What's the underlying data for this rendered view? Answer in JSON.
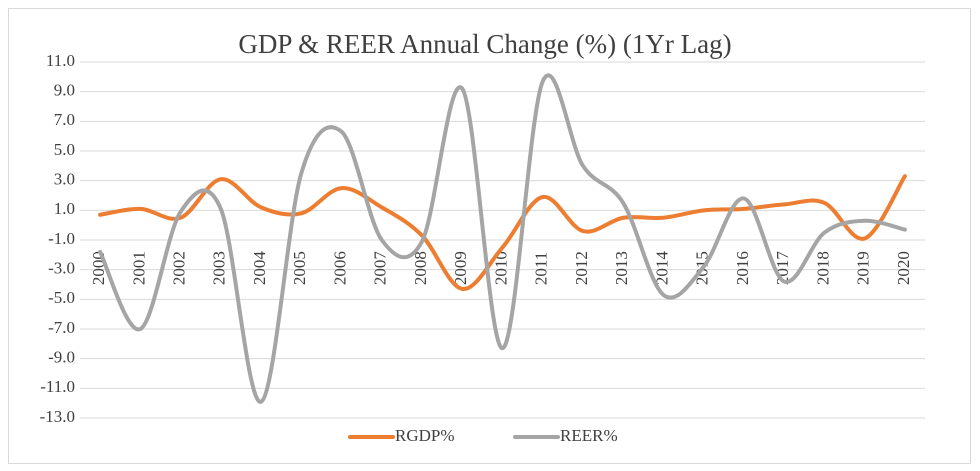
{
  "chart_data": {
    "type": "line",
    "title": "GDP & REER Annual Change (%) (1Yr Lag)",
    "categories": [
      "2000",
      "2001",
      "2002",
      "2003",
      "2004",
      "2005",
      "2006",
      "2007",
      "2008",
      "2009",
      "2010",
      "2011",
      "2012",
      "2013",
      "2014",
      "2015",
      "2016",
      "2017",
      "2018",
      "2019",
      "2020"
    ],
    "series": [
      {
        "name": "RGDP%",
        "color": "#ED7D31",
        "values": [
          0.7,
          1.1,
          0.5,
          3.1,
          1.2,
          0.8,
          2.5,
          1.2,
          -0.7,
          -4.3,
          -1.5,
          1.9,
          -0.4,
          0.5,
          0.5,
          1.0,
          1.1,
          1.4,
          1.5,
          -0.9,
          3.3
        ]
      },
      {
        "name": "REER%",
        "color": "#A5A5A5",
        "values": [
          -1.8,
          -7.0,
          0.9,
          1.1,
          -11.9,
          3.5,
          6.3,
          -1.0,
          -1.1,
          9.2,
          -8.3,
          9.7,
          4.0,
          1.5,
          -4.7,
          -2.8,
          1.8,
          -3.8,
          -0.5,
          0.3,
          -0.3
        ]
      }
    ],
    "ylim": [
      -13,
      11
    ],
    "yticks": [
      {
        "value": -13,
        "label": "-13.0"
      },
      {
        "value": -11,
        "label": "-11.0"
      },
      {
        "value": -9,
        "label": "-9.0"
      },
      {
        "value": -7,
        "label": "-7.0"
      },
      {
        "value": -5,
        "label": "-5.0"
      },
      {
        "value": -3,
        "label": "-3.0"
      },
      {
        "value": -1,
        "label": "-1.0"
      },
      {
        "value": 1,
        "label": "1.0"
      },
      {
        "value": 3,
        "label": "3.0"
      },
      {
        "value": 5,
        "label": "5.0"
      },
      {
        "value": 7,
        "label": "7.0"
      },
      {
        "value": 9,
        "label": "9.0"
      },
      {
        "value": 11,
        "label": "11.0"
      }
    ],
    "grid": true,
    "legend": "bottom",
    "smooth": true
  }
}
